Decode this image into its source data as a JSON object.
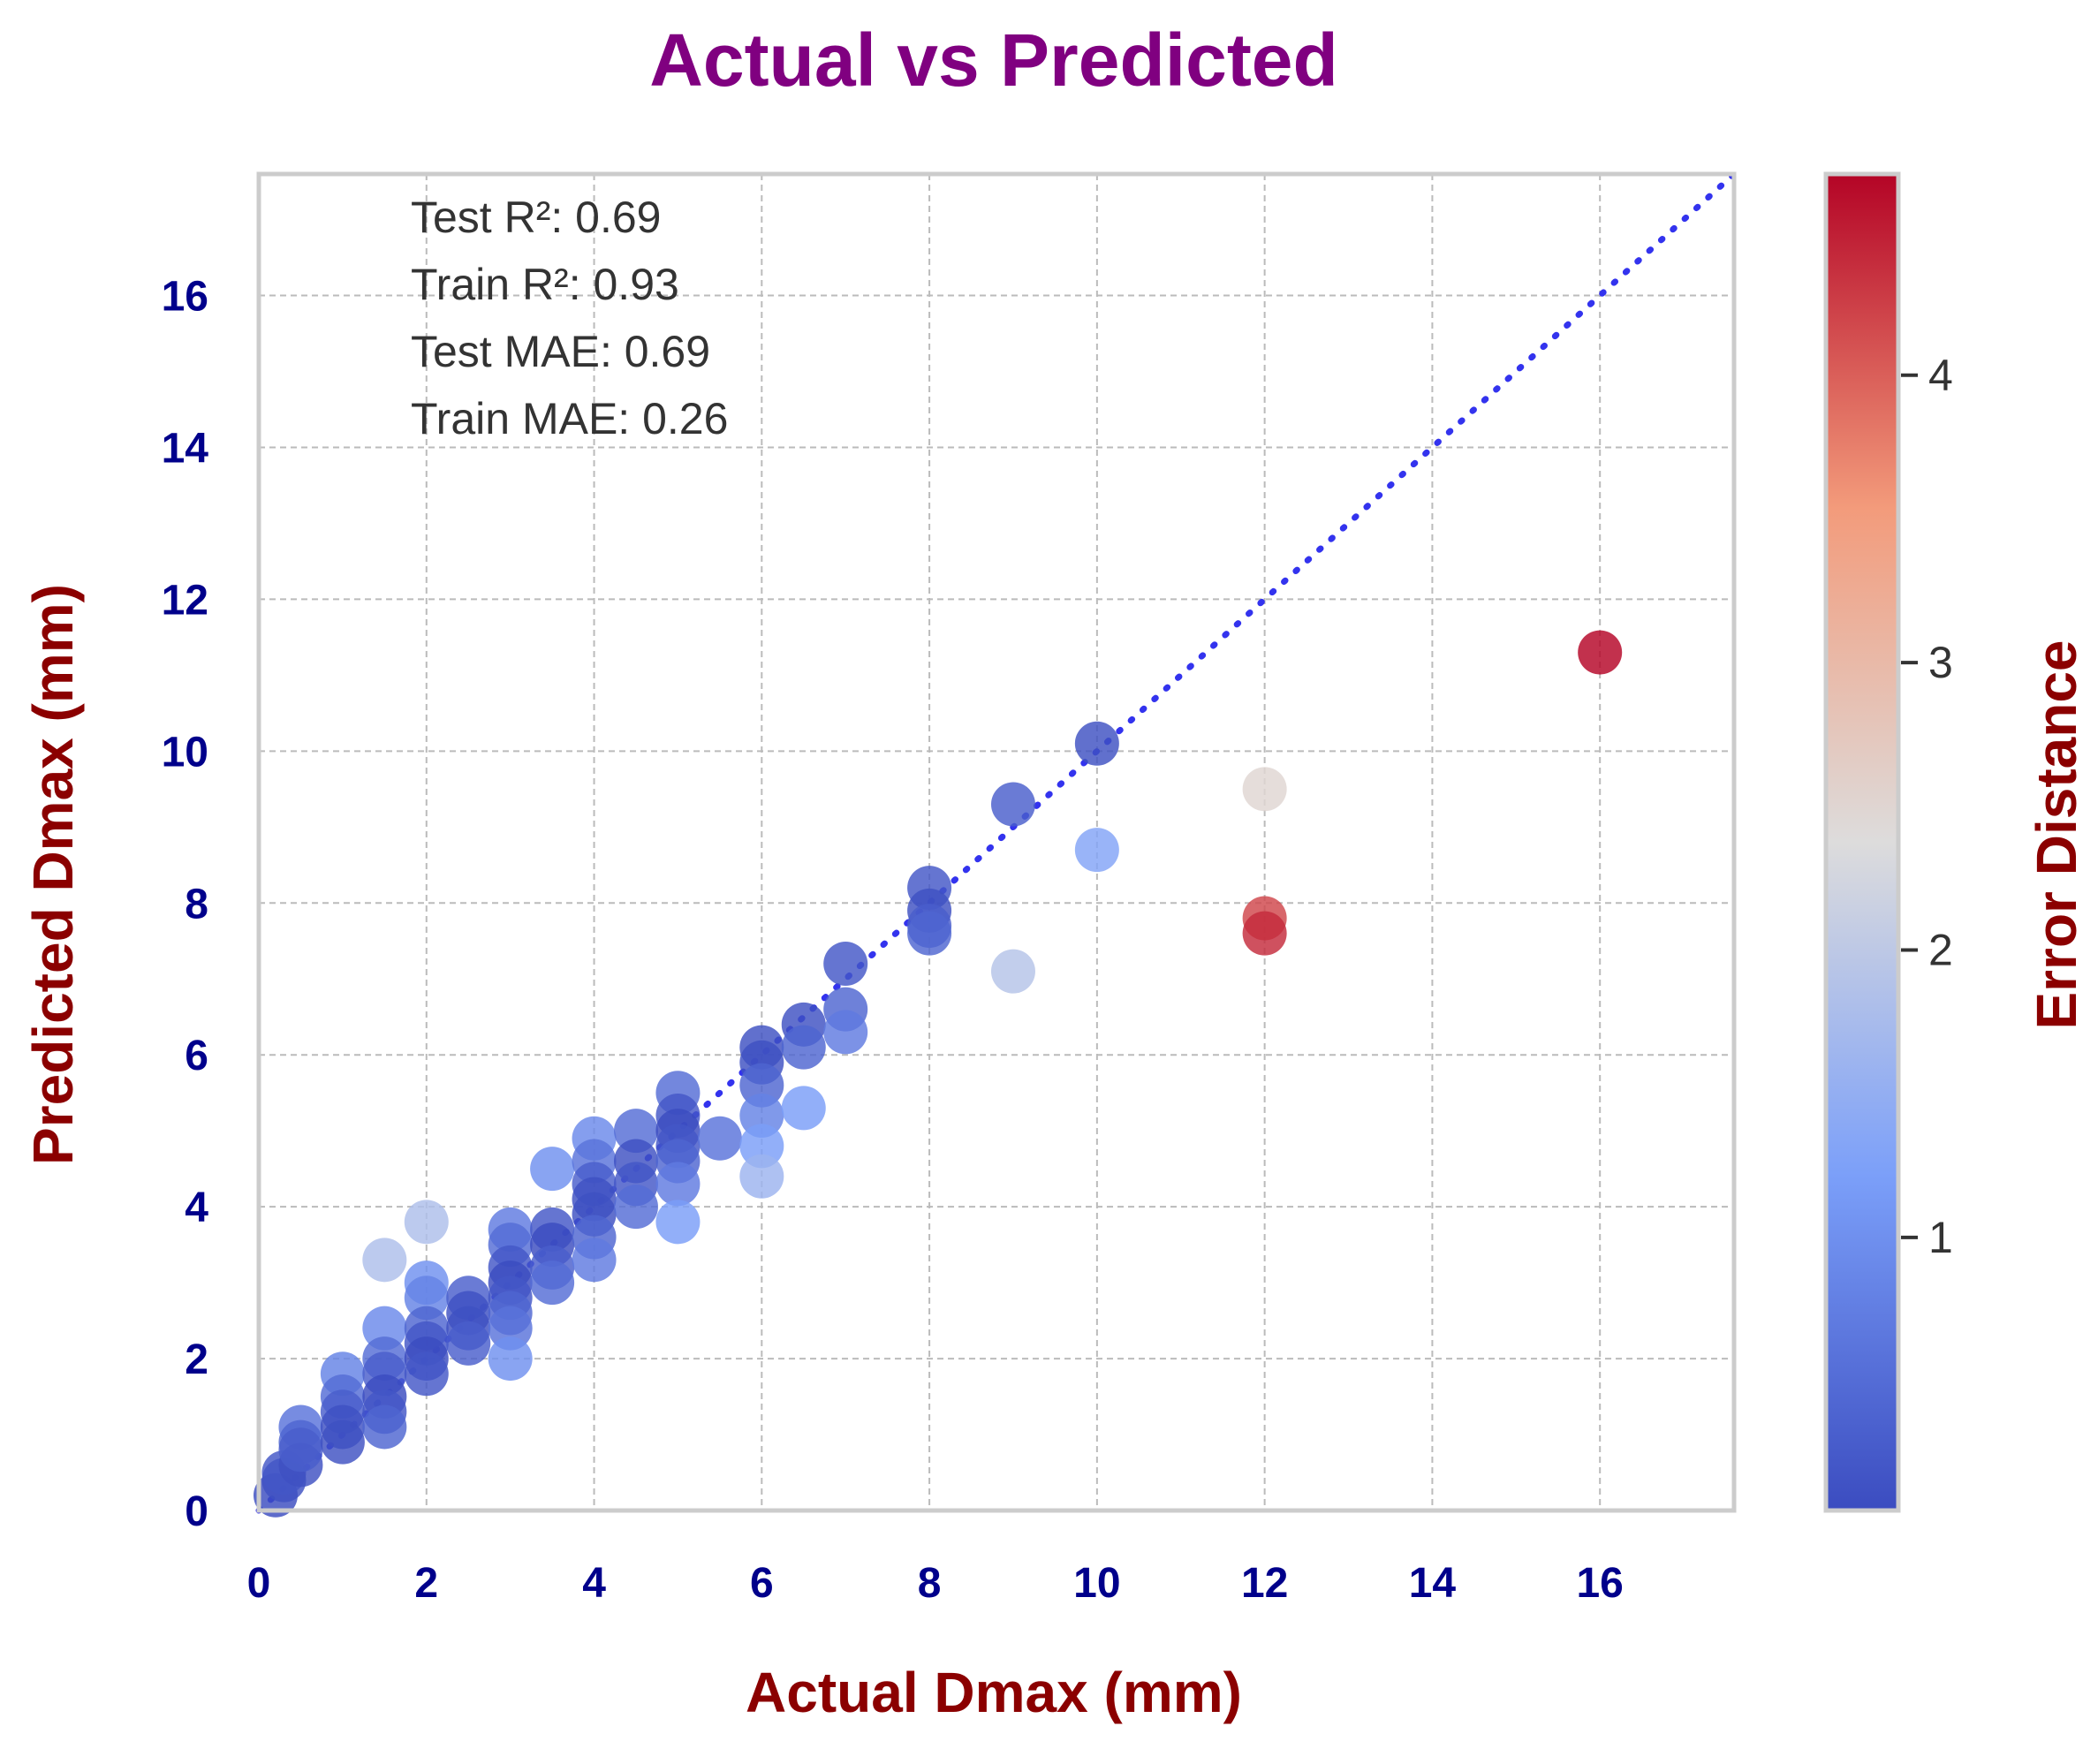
{
  "chart_data": {
    "type": "scatter",
    "title": "Actual vs Predicted",
    "xlabel": "Actual Dmax (mm)",
    "ylabel": "Predicted Dmax (mm)",
    "xlim": [
      0,
      17.6
    ],
    "ylim": [
      0,
      17.6
    ],
    "xticks": [
      "0",
      "2",
      "4",
      "6",
      "8",
      "10",
      "12",
      "14",
      "16"
    ],
    "yticks": [
      "0",
      "2",
      "4",
      "6",
      "8",
      "10",
      "12",
      "14",
      "16"
    ],
    "grid": true,
    "reference_line": "y = x (dotted blue)",
    "annotations": [
      "Test R²: 0.69",
      "Train R²: 0.93",
      "Test MAE: 0.69",
      "Train MAE: 0.26"
    ],
    "colorbar": {
      "label": "Error Distance",
      "range": [
        0.05,
        4.7
      ],
      "ticks": [
        "1",
        "2",
        "3",
        "4"
      ],
      "cmap": "coolwarm"
    },
    "points": [
      {
        "x": 0.2,
        "y": 0.2
      },
      {
        "x": 0.3,
        "y": 0.4
      },
      {
        "x": 0.3,
        "y": 0.5
      },
      {
        "x": 0.5,
        "y": 1.1
      },
      {
        "x": 0.5,
        "y": 0.9
      },
      {
        "x": 0.5,
        "y": 0.6
      },
      {
        "x": 0.5,
        "y": 0.8
      },
      {
        "x": 1.0,
        "y": 1.8
      },
      {
        "x": 1.0,
        "y": 1.5
      },
      {
        "x": 1.0,
        "y": 1.3
      },
      {
        "x": 1.0,
        "y": 1.1
      },
      {
        "x": 1.0,
        "y": 0.9
      },
      {
        "x": 1.5,
        "y": 3.3
      },
      {
        "x": 1.5,
        "y": 2.4
      },
      {
        "x": 1.5,
        "y": 2.0
      },
      {
        "x": 1.5,
        "y": 1.8
      },
      {
        "x": 1.5,
        "y": 1.5
      },
      {
        "x": 1.5,
        "y": 1.3
      },
      {
        "x": 1.5,
        "y": 1.1
      },
      {
        "x": 2.0,
        "y": 3.8
      },
      {
        "x": 2.0,
        "y": 3.0
      },
      {
        "x": 2.0,
        "y": 2.8
      },
      {
        "x": 2.0,
        "y": 2.4
      },
      {
        "x": 2.0,
        "y": 2.2
      },
      {
        "x": 2.0,
        "y": 2.0
      },
      {
        "x": 2.0,
        "y": 1.8
      },
      {
        "x": 2.5,
        "y": 2.8
      },
      {
        "x": 2.5,
        "y": 2.6
      },
      {
        "x": 2.5,
        "y": 2.4
      },
      {
        "x": 2.5,
        "y": 2.2
      },
      {
        "x": 3.0,
        "y": 3.7
      },
      {
        "x": 3.0,
        "y": 3.5
      },
      {
        "x": 3.0,
        "y": 3.2
      },
      {
        "x": 3.0,
        "y": 3.0
      },
      {
        "x": 3.0,
        "y": 2.8
      },
      {
        "x": 3.0,
        "y": 2.6
      },
      {
        "x": 3.0,
        "y": 2.4
      },
      {
        "x": 3.0,
        "y": 2.0
      },
      {
        "x": 3.5,
        "y": 4.5
      },
      {
        "x": 3.5,
        "y": 3.7
      },
      {
        "x": 3.5,
        "y": 3.5
      },
      {
        "x": 3.5,
        "y": 3.2
      },
      {
        "x": 3.5,
        "y": 3.0
      },
      {
        "x": 4.0,
        "y": 4.9
      },
      {
        "x": 4.0,
        "y": 4.6
      },
      {
        "x": 4.0,
        "y": 4.3
      },
      {
        "x": 4.0,
        "y": 4.1
      },
      {
        "x": 4.0,
        "y": 3.9
      },
      {
        "x": 4.0,
        "y": 3.6
      },
      {
        "x": 4.0,
        "y": 3.3
      },
      {
        "x": 4.5,
        "y": 5.0
      },
      {
        "x": 4.5,
        "y": 4.6
      },
      {
        "x": 4.5,
        "y": 4.3
      },
      {
        "x": 4.5,
        "y": 4.0
      },
      {
        "x": 5.0,
        "y": 5.5
      },
      {
        "x": 5.0,
        "y": 5.2
      },
      {
        "x": 5.0,
        "y": 5.0
      },
      {
        "x": 5.0,
        "y": 4.8
      },
      {
        "x": 5.0,
        "y": 4.6
      },
      {
        "x": 5.0,
        "y": 4.3
      },
      {
        "x": 5.0,
        "y": 3.8
      },
      {
        "x": 5.5,
        "y": 4.9
      },
      {
        "x": 6.0,
        "y": 6.1
      },
      {
        "x": 6.0,
        "y": 5.9
      },
      {
        "x": 6.0,
        "y": 5.6
      },
      {
        "x": 6.0,
        "y": 5.2
      },
      {
        "x": 6.0,
        "y": 4.8
      },
      {
        "x": 6.0,
        "y": 4.4
      },
      {
        "x": 6.5,
        "y": 6.4
      },
      {
        "x": 6.5,
        "y": 6.1
      },
      {
        "x": 6.5,
        "y": 5.3
      },
      {
        "x": 7.0,
        "y": 7.2
      },
      {
        "x": 7.0,
        "y": 6.6
      },
      {
        "x": 7.0,
        "y": 6.3
      },
      {
        "x": 8.0,
        "y": 8.2
      },
      {
        "x": 8.0,
        "y": 7.9
      },
      {
        "x": 8.0,
        "y": 7.7
      },
      {
        "x": 8.0,
        "y": 7.6
      },
      {
        "x": 9.0,
        "y": 9.3
      },
      {
        "x": 9.0,
        "y": 7.1
      },
      {
        "x": 10.0,
        "y": 10.1
      },
      {
        "x": 10.0,
        "y": 8.7
      },
      {
        "x": 12.0,
        "y": 9.5
      },
      {
        "x": 12.0,
        "y": 7.8
      },
      {
        "x": 12.0,
        "y": 7.6
      },
      {
        "x": 16.0,
        "y": 11.3
      }
    ]
  }
}
